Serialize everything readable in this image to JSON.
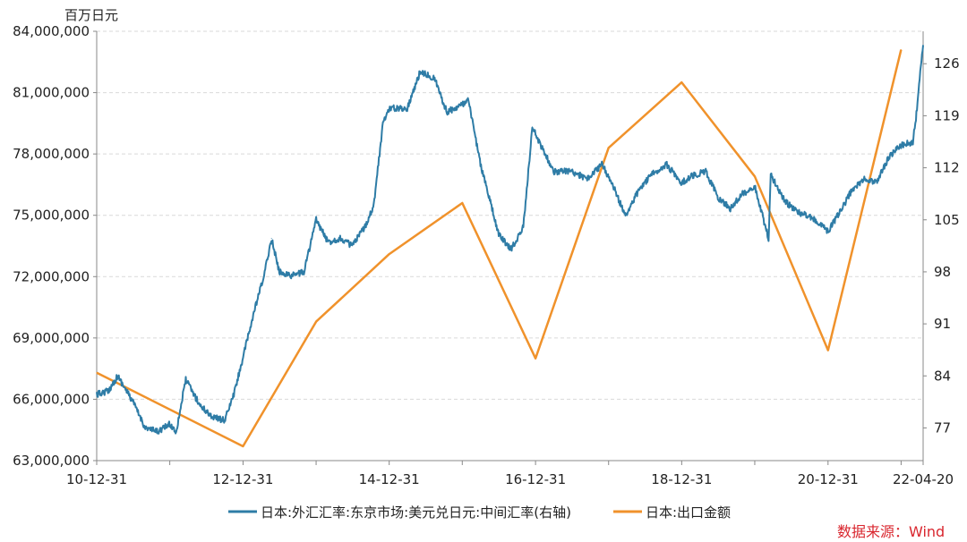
{
  "chart_data": {
    "type": "line",
    "unit_left": "百万日元",
    "source": "数据来源：Wind",
    "grid": "dashed horizontal",
    "legend_position": "bottom",
    "y_left": {
      "min": 63000000,
      "max": 84000000,
      "ticks": [
        63000000,
        66000000,
        69000000,
        72000000,
        75000000,
        78000000,
        81000000,
        84000000
      ],
      "tick_labels": [
        "63,000,000",
        "66,000,000",
        "69,000,000",
        "72,000,000",
        "75,000,000",
        "78,000,000",
        "81,000,000",
        "84,000,000"
      ]
    },
    "y_right": {
      "min": 72,
      "max": 130,
      "ticks": [
        77,
        84,
        91,
        98,
        105,
        112,
        119,
        126
      ],
      "tick_labels": [
        "77",
        "84",
        "91",
        "98",
        "105",
        "112",
        "119",
        "126"
      ]
    },
    "x_axis": {
      "start": "2010-12-31",
      "end": "2022-04-20",
      "ticks": [
        "2010-12-31",
        "2012-12-31",
        "2014-12-31",
        "2016-12-31",
        "2018-12-31",
        "2020-12-31",
        "2022-04-20"
      ],
      "tick_labels": [
        "10-12-31",
        "12-12-31",
        "14-12-31",
        "16-12-31",
        "18-12-31",
        "20-12-31",
        "22-04-20"
      ]
    },
    "series": [
      {
        "name": "日本:外汇汇率:东京市场:美元兑日元:中间汇率(右轴)",
        "axis": "right",
        "color": "#2e7ca6",
        "points": [
          [
            "2010-12-31",
            81.5
          ],
          [
            "2011-02-28",
            82.0
          ],
          [
            "2011-04-15",
            84.0
          ],
          [
            "2011-06-30",
            80.5
          ],
          [
            "2011-08-31",
            77.0
          ],
          [
            "2011-10-31",
            76.5
          ],
          [
            "2011-12-31",
            77.5
          ],
          [
            "2012-02-01",
            76.5
          ],
          [
            "2012-03-20",
            83.5
          ],
          [
            "2012-05-31",
            80.0
          ],
          [
            "2012-07-31",
            78.5
          ],
          [
            "2012-09-30",
            78.0
          ],
          [
            "2012-11-15",
            81.5
          ],
          [
            "2012-12-31",
            86.5
          ],
          [
            "2013-02-28",
            93.0
          ],
          [
            "2013-04-15",
            97.5
          ],
          [
            "2013-05-22",
            102.5
          ],
          [
            "2013-06-30",
            98.0
          ],
          [
            "2013-08-31",
            97.5
          ],
          [
            "2013-10-31",
            98.0
          ],
          [
            "2013-12-31",
            105.0
          ],
          [
            "2014-02-28",
            102.0
          ],
          [
            "2014-04-30",
            102.5
          ],
          [
            "2014-06-30",
            101.5
          ],
          [
            "2014-08-31",
            104.0
          ],
          [
            "2014-10-15",
            107.0
          ],
          [
            "2014-11-30",
            118.0
          ],
          [
            "2014-12-31",
            120.0
          ],
          [
            "2015-03-31",
            120.0
          ],
          [
            "2015-06-05",
            125.0
          ],
          [
            "2015-08-15",
            124.0
          ],
          [
            "2015-10-15",
            119.5
          ],
          [
            "2015-12-31",
            120.5
          ],
          [
            "2016-01-31",
            121.0
          ],
          [
            "2016-03-31",
            112.5
          ],
          [
            "2016-06-30",
            103.0
          ],
          [
            "2016-08-31",
            101.0
          ],
          [
            "2016-10-31",
            104.0
          ],
          [
            "2016-12-15",
            117.5
          ],
          [
            "2016-12-31",
            116.5
          ],
          [
            "2017-03-31",
            111.5
          ],
          [
            "2017-06-30",
            111.5
          ],
          [
            "2017-09-15",
            110.5
          ],
          [
            "2017-11-30",
            112.5
          ],
          [
            "2018-01-31",
            109.0
          ],
          [
            "2018-03-25",
            105.5
          ],
          [
            "2018-05-31",
            109.0
          ],
          [
            "2018-07-31",
            111.0
          ],
          [
            "2018-10-15",
            112.5
          ],
          [
            "2018-12-31",
            110.0
          ],
          [
            "2019-02-28",
            111.0
          ],
          [
            "2019-04-30",
            111.5
          ],
          [
            "2019-06-30",
            108.0
          ],
          [
            "2019-08-31",
            106.5
          ],
          [
            "2019-10-31",
            108.5
          ],
          [
            "2019-12-31",
            109.5
          ],
          [
            "2020-03-09",
            102.5
          ],
          [
            "2020-03-20",
            111.0
          ],
          [
            "2020-05-31",
            107.5
          ],
          [
            "2020-07-31",
            106.0
          ],
          [
            "2020-09-30",
            105.5
          ],
          [
            "2020-12-31",
            103.5
          ],
          [
            "2021-02-28",
            106.0
          ],
          [
            "2021-04-30",
            109.0
          ],
          [
            "2021-06-30",
            110.5
          ],
          [
            "2021-08-31",
            110.0
          ],
          [
            "2021-10-31",
            113.5
          ],
          [
            "2021-12-31",
            115.0
          ],
          [
            "2022-02-28",
            115.5
          ],
          [
            "2022-03-15",
            118.5
          ],
          [
            "2022-03-28",
            122.5
          ],
          [
            "2022-04-20",
            128.5
          ]
        ]
      },
      {
        "name": "日本:出口金额",
        "axis": "left",
        "color": "#f0922b",
        "points": [
          [
            "2010-12-31",
            67300000
          ],
          [
            "2012-12-31",
            63700000
          ],
          [
            "2013-12-31",
            69800000
          ],
          [
            "2014-12-31",
            73100000
          ],
          [
            "2015-12-31",
            75600000
          ],
          [
            "2016-12-31",
            68000000
          ],
          [
            "2017-12-31",
            78300000
          ],
          [
            "2018-12-31",
            81500000
          ],
          [
            "2019-12-31",
            76900000
          ],
          [
            "2020-12-31",
            68400000
          ],
          [
            "2021-12-31",
            83100000
          ]
        ]
      }
    ]
  }
}
